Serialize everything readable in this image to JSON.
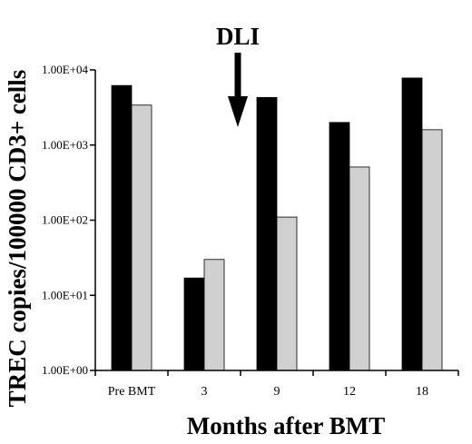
{
  "chart_data": {
    "type": "bar",
    "title": "",
    "xlabel": "Months after BMT",
    "ylabel": "TREC copies/100000 CD3+ cells",
    "yscale": "log",
    "ylim": [
      1,
      10000
    ],
    "yticks": [
      1,
      10,
      100,
      1000,
      10000
    ],
    "ytick_labels": [
      "1.00E+00",
      "1.00E+01",
      "1.00E+02",
      "1.00E+03",
      "1.00E+04"
    ],
    "categories": [
      "Pre BMT",
      "3",
      "9",
      "12",
      "18"
    ],
    "series": [
      {
        "values": [
          6200,
          17,
          4300,
          2000,
          7800
        ]
      },
      {
        "values": [
          3400,
          30,
          110,
          510,
          1600
        ]
      }
    ],
    "series_colors": [
      "#000000",
      "#d0d0d0"
    ],
    "grid": false,
    "legend": "none",
    "annotations": [
      {
        "text": "DLI",
        "arrow": "down",
        "between_categories": [
          "3",
          "9"
        ]
      }
    ]
  }
}
